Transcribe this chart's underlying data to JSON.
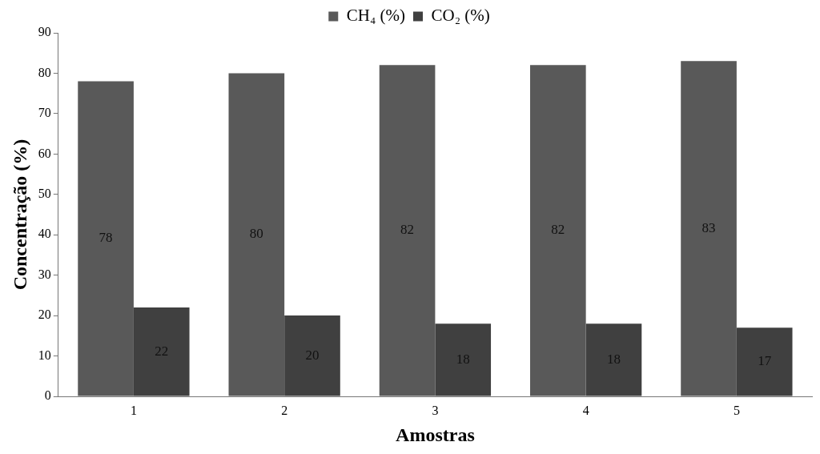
{
  "chart_data": {
    "type": "bar",
    "xlabel": "Amostras",
    "ylabel": "Concentração (%)",
    "categories": [
      "1",
      "2",
      "3",
      "4",
      "5"
    ],
    "series": [
      {
        "name": "CH₄ (%)",
        "color": "#595959",
        "values": [
          78,
          80,
          82,
          82,
          83
        ]
      },
      {
        "name": "CO₂ (%)",
        "color": "#404040",
        "values": [
          22,
          20,
          18,
          18,
          17
        ]
      }
    ],
    "ylim": [
      0,
      90
    ],
    "yticks": [
      0,
      10,
      20,
      30,
      40,
      50,
      60,
      70,
      80,
      90
    ],
    "grid": false,
    "legend": "top",
    "data_labels": true
  }
}
